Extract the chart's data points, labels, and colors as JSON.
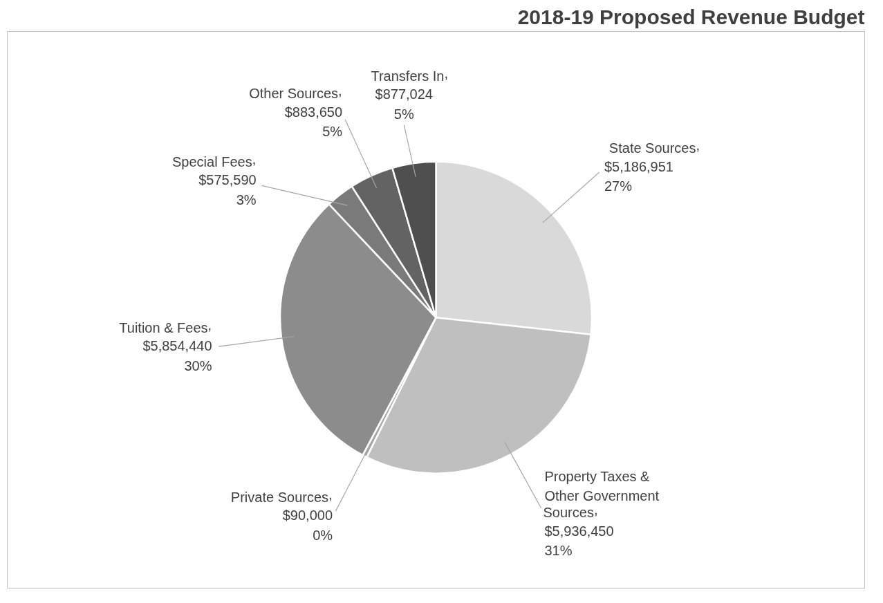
{
  "chart_data": {
    "type": "pie",
    "title": "2018-19 Proposed Revenue Budget",
    "categories": [
      "State Sources",
      "Property Taxes & Other Government Sources",
      "Private Sources",
      "Tuition & Fees",
      "Special Fees",
      "Other Sources",
      "Transfers In"
    ],
    "values": [
      5186951,
      5936450,
      90000,
      5854440,
      575590,
      883650,
      877024
    ],
    "colors": [
      "#d9d9d9",
      "#bfbfbf",
      "#a6a6a6",
      "#8c8c8c",
      "#7a7a7a",
      "#636363",
      "#4f4f4f"
    ],
    "value_labels": [
      ",\n$5,186,951\n27%",
      ",\n$5,936,450\n31%",
      ",\n$90,000\n0%",
      ",\n$5,854,440\n30%",
      ",\n$575,590\n3%",
      ",\n$883,650\n5%",
      ",\n$877,024\n5%"
    ]
  }
}
